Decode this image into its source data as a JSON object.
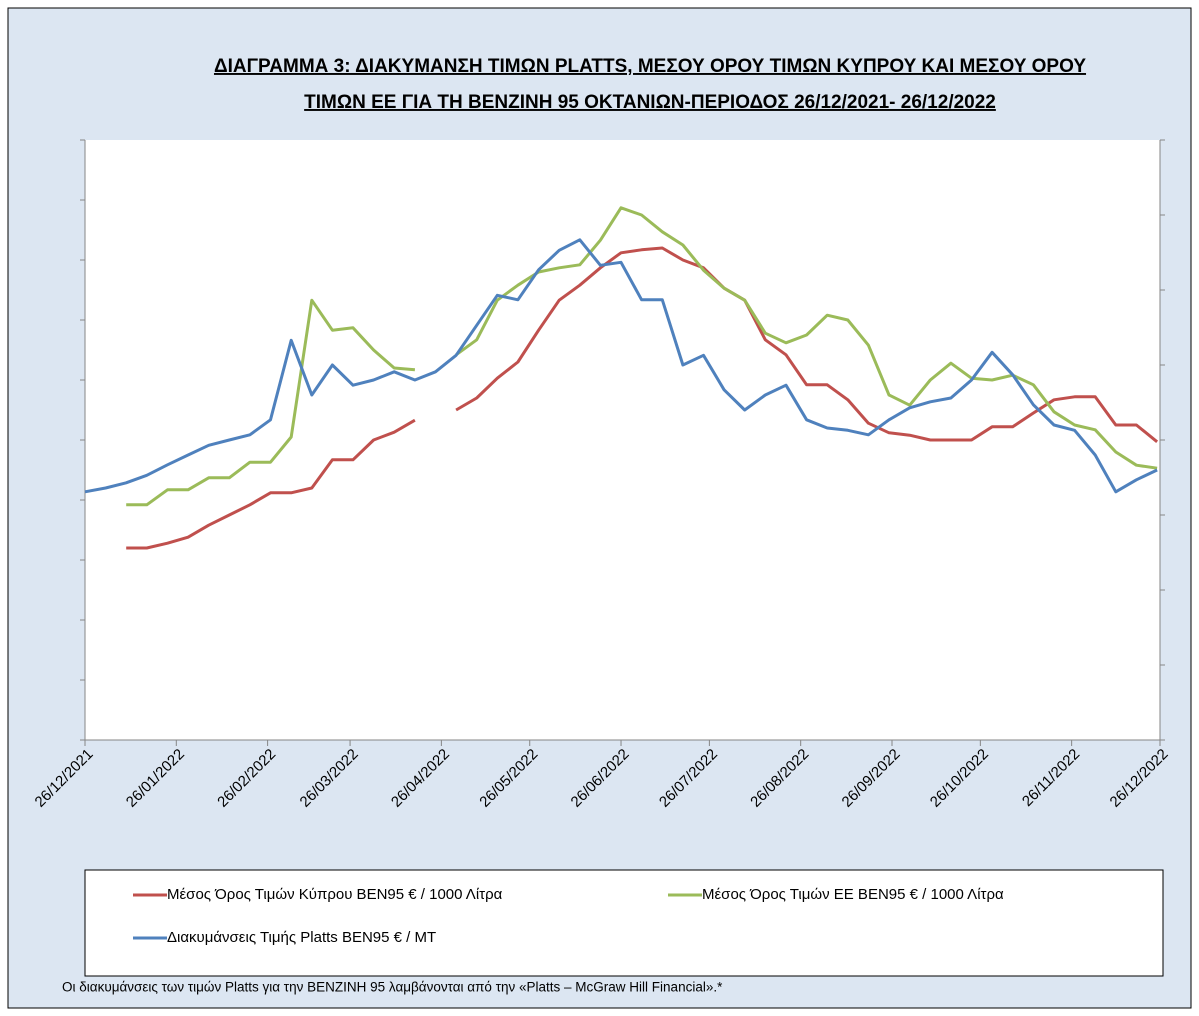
{
  "chart_data": {
    "type": "line",
    "title": [
      "ΔΙΑΓΡΑΜΜΑ 3: ΔΙΑΚΥΜΑΝΣΗ ΤΙΜΩΝ PLATTS, ΜΕΣΟΥ ΟΡΟΥ ΤΙΜΩΝ ΚΥΠΡΟΥ ΚΑΙ ΜΕΣΟΥ ΟΡΟΥ",
      "ΤΙΜΩΝ ΕΕ ΓΙΑ ΤΗ ΒΕΝΖΙΝΗ 95 ΟΚΤΑΝΙΩΝ-ΠΕΡΙΟΔΟΣ  26/12/2021- 26/12/2022"
    ],
    "x": [
      "26/12/2021",
      "02/01/2022",
      "09/01/2022",
      "16/01/2022",
      "23/01/2022",
      "30/01/2022",
      "06/02/2022",
      "13/02/2022",
      "20/02/2022",
      "27/02/2022",
      "06/03/2022",
      "13/03/2022",
      "20/03/2022",
      "27/03/2022",
      "03/04/2022",
      "10/04/2022",
      "17/04/2022",
      "24/04/2022",
      "01/05/2022",
      "08/05/2022",
      "15/05/2022",
      "22/05/2022",
      "29/05/2022",
      "05/06/2022",
      "12/06/2022",
      "19/06/2022",
      "26/06/2022",
      "03/07/2022",
      "10/07/2022",
      "17/07/2022",
      "24/07/2022",
      "31/07/2022",
      "07/08/2022",
      "14/08/2022",
      "21/08/2022",
      "28/08/2022",
      "04/09/2022",
      "11/09/2022",
      "18/09/2022",
      "25/09/2022",
      "02/10/2022",
      "09/10/2022",
      "16/10/2022",
      "23/10/2022",
      "30/10/2022",
      "06/11/2022",
      "13/11/2022",
      "20/11/2022",
      "27/11/2022",
      "04/12/2022",
      "11/12/2022",
      "18/12/2022",
      "25/12/2022"
    ],
    "xlim": [
      "26/12/2021",
      "26/12/2022"
    ],
    "xticks": [
      "26/12/2021",
      "26/01/2022",
      "26/02/2022",
      "26/03/2022",
      "26/04/2022",
      "26/05/2022",
      "26/06/2022",
      "26/07/2022",
      "26/08/2022",
      "26/09/2022",
      "26/10/2022",
      "26/11/2022",
      "26/12/2022"
    ],
    "ylim": [
      0,
      10
    ],
    "yticks": [
      0,
      1,
      2,
      3,
      4,
      5,
      6,
      7,
      8,
      9,
      10
    ],
    "y2lim": [
      0,
      8
    ],
    "y2ticks": [
      0,
      1,
      2,
      3,
      4,
      5,
      6,
      7,
      8
    ],
    "series": [
      {
        "name": "Μέσος Όρος Τιμών Κύπρου ΒΕΝ95 € / 1000 Λίτρα",
        "color": "#c0504d",
        "values": [
          3.25,
          null,
          3.2,
          3.2,
          3.28,
          3.38,
          3.58,
          3.75,
          3.92,
          4.12,
          4.12,
          4.2,
          4.67,
          4.67,
          5.0,
          5.13,
          5.33,
          null,
          5.5,
          5.7,
          6.03,
          6.3,
          6.83,
          7.33,
          7.58,
          7.87,
          8.12,
          8.17,
          8.2,
          8.0,
          7.87,
          7.53,
          7.33,
          6.67,
          6.42,
          5.92,
          5.92,
          5.67,
          5.28,
          5.12,
          5.08,
          5.0,
          5.0,
          5.0,
          5.22,
          5.22,
          5.45,
          5.67,
          5.72,
          5.72,
          5.25,
          5.25,
          4.97
        ]
      },
      {
        "name": "Μέσος Όρος Τιμών ΕΕ ΒΕΝ95 € / 1000 Λίτρα",
        "color": "#9bbb59",
        "values": [
          3.7,
          null,
          3.92,
          3.92,
          4.17,
          4.17,
          4.37,
          4.37,
          4.63,
          4.63,
          5.05,
          7.33,
          6.83,
          6.87,
          6.5,
          6.2,
          6.17,
          null,
          6.42,
          6.67,
          7.33,
          7.58,
          7.8,
          7.87,
          7.92,
          8.33,
          8.87,
          8.75,
          8.47,
          8.25,
          7.83,
          7.53,
          7.33,
          6.78,
          6.62,
          6.75,
          7.08,
          7.0,
          6.58,
          5.75,
          5.58,
          6.0,
          6.28,
          6.03,
          6.0,
          6.08,
          5.92,
          5.47,
          5.25,
          5.17,
          4.8,
          4.58,
          4.53
        ]
      },
      {
        "name": "Διακυμάνσεις Τιμής Platts ΒΕΝ95 € / ΜΤ",
        "color": "#4f81bd",
        "axis": "y2",
        "values": [
          3.31,
          3.36,
          3.43,
          3.53,
          3.67,
          3.8,
          3.93,
          4.0,
          4.07,
          4.27,
          5.33,
          4.6,
          5.0,
          4.73,
          4.8,
          4.91,
          4.8,
          4.91,
          5.13,
          5.53,
          5.93,
          5.87,
          6.27,
          6.53,
          6.67,
          6.33,
          6.37,
          5.87,
          5.87,
          5.0,
          5.13,
          4.67,
          4.4,
          4.6,
          4.73,
          4.27,
          4.16,
          4.13,
          4.07,
          4.27,
          4.43,
          4.51,
          4.56,
          4.8,
          5.17,
          4.87,
          4.47,
          4.2,
          4.13,
          3.8,
          3.31,
          3.47,
          3.6
        ]
      }
    ],
    "note": "Οι διακυμάνσεις των τιμών Platts για την ΒΕΝΖΙΝΗ 95 λαμβάνονται από την «Platts – McGraw Hill Financial».*"
  }
}
